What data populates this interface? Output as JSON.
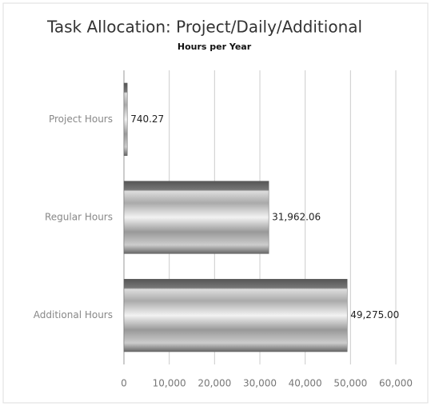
{
  "chart_data": {
    "type": "bar",
    "orientation": "horizontal",
    "title": "Task Allocation: Project/Daily/Additional",
    "subtitle": "Hours per Year",
    "categories": [
      "Project Hours",
      "Regular Hours",
      "Additional Hours"
    ],
    "values": [
      740.27,
      31962.06,
      49275.0
    ],
    "value_labels": [
      "740.27",
      "31,962.06",
      "49,275.00"
    ],
    "color": "#9a9a9a",
    "xlim": [
      0,
      60000
    ],
    "xticks": [
      0,
      {
        "value": 10000,
        "label": "10,000"
      },
      {
        "value": 20000,
        "label": "20,000"
      },
      {
        "value": 30000,
        "label": "30,000"
      },
      {
        "value": 40000,
        "label": "40,000"
      },
      {
        "value": 50000,
        "label": "50,000"
      },
      {
        "value": 60000,
        "label": "60,000"
      }
    ],
    "grid": true
  }
}
